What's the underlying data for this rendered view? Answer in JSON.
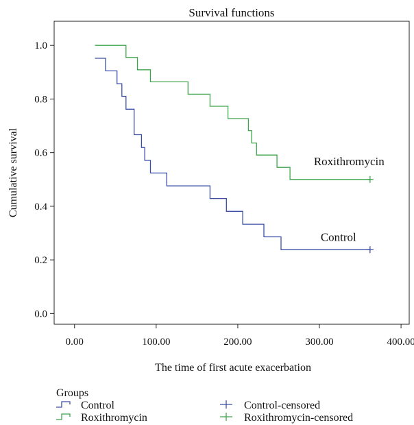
{
  "chart_data": {
    "type": "line",
    "step": true,
    "title": "Survival functions",
    "xlabel": "The time of first acute exacerbation",
    "ylabel": "Cumulative survival",
    "xlim": [
      -25,
      410
    ],
    "ylim": [
      -0.04,
      1.09
    ],
    "x_ticks": [
      0,
      100,
      200,
      300,
      400
    ],
    "x_tick_labels": [
      "0.00",
      "100.00",
      "200.00",
      "300.00",
      "400.00"
    ],
    "y_ticks": [
      0.0,
      0.2,
      0.4,
      0.6,
      0.8,
      1.0
    ],
    "y_tick_labels": [
      "0.0",
      "0.2",
      "0.4",
      "0.6",
      "0.8",
      "1.0"
    ],
    "grid": false,
    "legend": {
      "title": "Groups",
      "placement": "bottom",
      "items": [
        "Control",
        "Roxithromycin",
        "Control-censored",
        "Roxithromycin-censored"
      ]
    },
    "series": [
      {
        "name": "Control",
        "color": "#3b4ea6",
        "annotation": "Control",
        "points": [
          [
            25,
            0.952
          ],
          [
            38,
            0.905
          ],
          [
            52,
            0.857
          ],
          [
            58,
            0.81
          ],
          [
            63,
            0.762
          ],
          [
            73,
            0.667
          ],
          [
            82,
            0.619
          ],
          [
            86,
            0.571
          ],
          [
            93,
            0.524
          ],
          [
            113,
            0.476
          ],
          [
            166,
            0.429
          ],
          [
            186,
            0.381
          ],
          [
            206,
            0.333
          ],
          [
            232,
            0.286
          ],
          [
            253,
            0.238
          ],
          [
            362,
            0.238
          ]
        ],
        "censored": [
          [
            362,
            0.238
          ]
        ]
      },
      {
        "name": "Roxithromycin",
        "color": "#3ea54a",
        "annotation": "Roxithromycin",
        "points": [
          [
            25,
            1.0
          ],
          [
            63,
            0.955
          ],
          [
            77,
            0.909
          ],
          [
            93,
            0.864
          ],
          [
            139,
            0.818
          ],
          [
            166,
            0.773
          ],
          [
            188,
            0.727
          ],
          [
            213,
            0.682
          ],
          [
            217,
            0.636
          ],
          [
            223,
            0.591
          ],
          [
            248,
            0.545
          ],
          [
            264,
            0.5
          ],
          [
            362,
            0.5
          ]
        ],
        "censored": [
          [
            362,
            0.5
          ]
        ]
      }
    ]
  }
}
